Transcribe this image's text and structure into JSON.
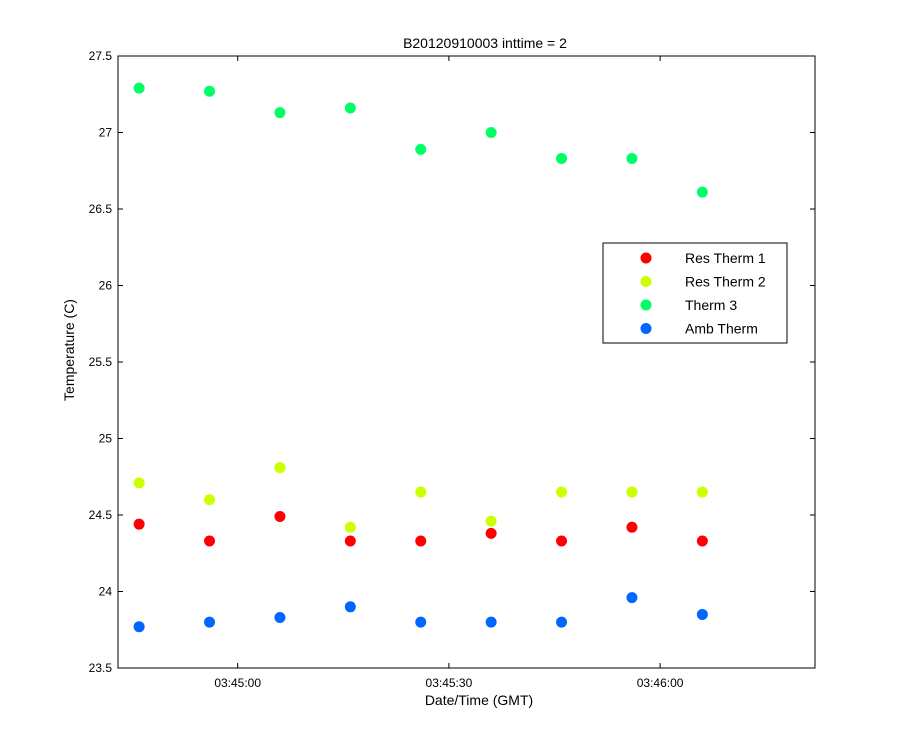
{
  "chart_data": {
    "type": "scatter",
    "title": "B20120910003 inttime = 2",
    "xlabel": "Date/Time (GMT)",
    "ylabel": "Temperature (C)",
    "ylim": [
      23.5,
      27.5
    ],
    "xlim": [
      "03:44:43",
      "03:46:22"
    ],
    "x_ticks": [
      "03:45:00",
      "03:45:30",
      "03:46:00"
    ],
    "y_ticks": [
      "23.5",
      "24",
      "24.5",
      "25",
      "25.5",
      "26",
      "26.5",
      "27",
      "27.5"
    ],
    "x": [
      "03:44:46",
      "03:44:56",
      "03:45:06",
      "03:45:16",
      "03:45:26",
      "03:45:36",
      "03:45:46",
      "03:45:56",
      "03:46:06"
    ],
    "grid": false,
    "legend_position": "right",
    "series": [
      {
        "name": "Res Therm 1",
        "color": "#ff0000",
        "values": [
          24.44,
          24.33,
          24.49,
          24.33,
          24.33,
          24.38,
          24.33,
          24.42,
          24.33
        ]
      },
      {
        "name": "Res Therm 2",
        "color": "#ccff00",
        "values": [
          24.71,
          24.6,
          24.81,
          24.42,
          24.65,
          24.46,
          24.65,
          24.65,
          24.65
        ]
      },
      {
        "name": "Therm 3",
        "color": "#00ff66",
        "values": [
          27.29,
          27.27,
          27.13,
          27.16,
          26.89,
          27.0,
          26.83,
          26.83,
          26.61
        ]
      },
      {
        "name": "Amb Therm",
        "color": "#0066ff",
        "values": [
          23.77,
          23.8,
          23.83,
          23.9,
          23.8,
          23.8,
          23.8,
          23.96,
          23.85
        ]
      }
    ]
  }
}
